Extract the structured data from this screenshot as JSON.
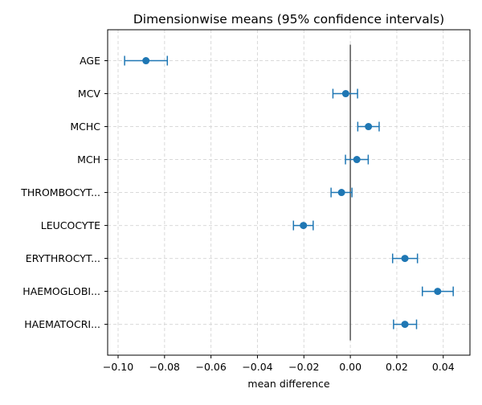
{
  "chart_data": {
    "type": "scatter",
    "subtype": "errorbar-dot",
    "title": "Dimensionwise means (95% confidence intervals)",
    "xlabel": "mean difference",
    "ylabel": "",
    "xlim": [
      -0.1045,
      0.0515
    ],
    "x_ticks": [
      -0.1,
      -0.08,
      -0.06,
      -0.04,
      -0.02,
      0.0,
      0.02,
      0.04
    ],
    "x_tick_labels": [
      "−0.10",
      "−0.08",
      "−0.06",
      "−0.04",
      "−0.02",
      "0.00",
      "0.02",
      "0.04"
    ],
    "categories": [
      "AGE",
      "MCV",
      "MCHC",
      "MCH",
      "THROMBOCYT...",
      "LEUCOCYTE",
      "ERYTHROCYT...",
      "HAEMOGLOBI...",
      "HAEMATOCRI..."
    ],
    "series": [
      {
        "values": [
          -0.088,
          -0.002,
          0.0078,
          0.0028,
          -0.0038,
          -0.0202,
          0.0235,
          0.0376,
          0.0235
        ],
        "ci_low": [
          -0.0972,
          -0.0075,
          0.0032,
          -0.0021,
          -0.0083,
          -0.0245,
          0.0182,
          0.031,
          0.0186
        ],
        "ci_high": [
          -0.0788,
          0.0031,
          0.0124,
          0.0077,
          0.0007,
          -0.016,
          0.0289,
          0.0443,
          0.0285
        ]
      }
    ],
    "reference_line_x": 0,
    "grid": true,
    "colors": {
      "marker": "#1f77b4",
      "reference": "#555555",
      "grid": "#d9d9d9",
      "axes": "#000000"
    }
  }
}
